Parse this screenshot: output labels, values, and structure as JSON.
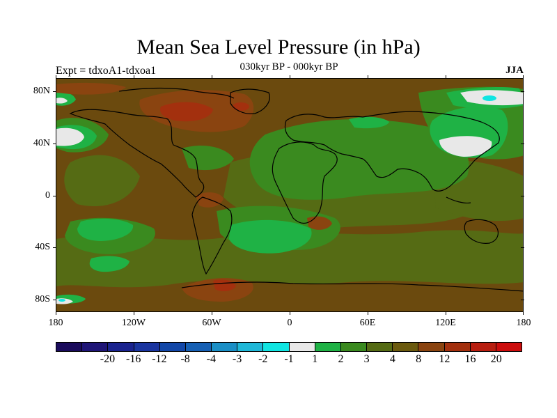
{
  "title": "Mean Sea Level Pressure (in hPa)",
  "subtitle": "030kyr BP - 000kyr BP",
  "experiment": "Expt = tdxoA1-tdxoa1",
  "season": "JJA",
  "y_axis_labels": [
    "80N",
    "40N",
    "0",
    "40S",
    "80S"
  ],
  "x_axis_labels": [
    "180",
    "120W",
    "60W",
    "0",
    "60E",
    "120E",
    "180"
  ],
  "colorbar": {
    "colors": [
      "#1a0b5c",
      "#1f1577",
      "#1a238f",
      "#1a35a0",
      "#1247a8",
      "#1660b4",
      "#1a8fc6",
      "#1fb8d8",
      "#10e5e2",
      "#e8e8e8",
      "#1fb245",
      "#3a8a1f",
      "#556b14",
      "#6b5a0e",
      "#8a4410",
      "#a3300e",
      "#b81e10",
      "#cc0d0d"
    ],
    "labels": [
      "-20",
      "-16",
      "-12",
      "-8",
      "-4",
      "-3",
      "-2",
      "-1",
      "1",
      "2",
      "3",
      "4",
      "8",
      "12",
      "16",
      "20"
    ]
  },
  "field_colors": {
    "base": "#6b4a0e",
    "olive": "#556b14",
    "mid_green": "#3a8a1f",
    "bright_green": "#1fb245",
    "white": "#e8e8e8",
    "cyan": "#10e5e2",
    "rust": "#8a4410",
    "red": "#a3300e",
    "coast": "#000000"
  }
}
